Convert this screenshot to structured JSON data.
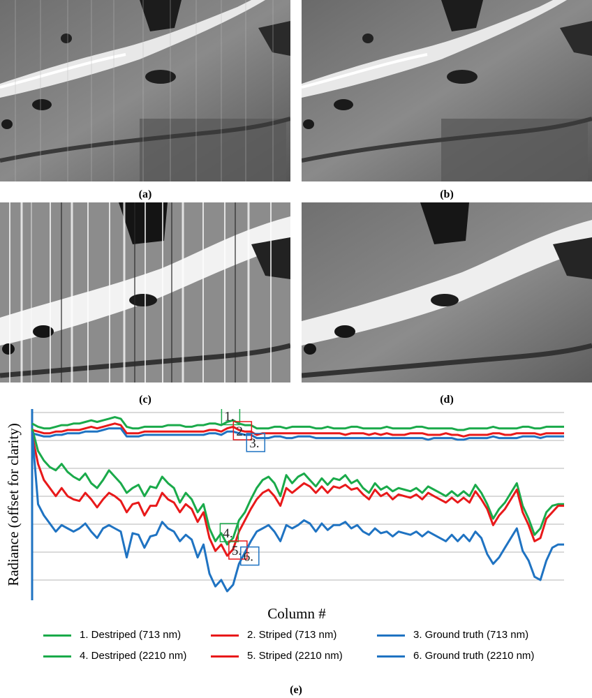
{
  "figure": {
    "captions": {
      "a": "(a)",
      "b": "(b)",
      "c": "(c)",
      "d": "(d)",
      "e": "(e)"
    }
  },
  "chart_data": {
    "type": "line",
    "title": "",
    "xlabel": "Column #",
    "ylabel": "Radiance (offset for clarity)",
    "x_ticks_shown": false,
    "y_ticks_shown": false,
    "grid": true,
    "legend_position": "bottom",
    "markers": [
      {
        "label": "1.",
        "color": "#1aaa4a"
      },
      {
        "label": "2.",
        "color": "#e8191a"
      },
      {
        "label": "3.",
        "color": "#1f73c2"
      },
      {
        "label": "4.",
        "color": "#1aaa4a"
      },
      {
        "label": "5.",
        "color": "#e8191a"
      },
      {
        "label": "6.",
        "color": "#1f73c2"
      }
    ],
    "series": [
      {
        "name": "1. Destriped (713 nm)",
        "color": "#1aaa4a",
        "values": [
          95,
          93,
          92,
          92,
          93,
          94,
          94,
          95,
          95,
          96,
          97,
          96,
          97,
          98,
          99,
          98,
          93,
          92,
          92,
          93,
          93,
          93,
          93,
          94,
          94,
          94,
          93,
          93,
          94,
          94,
          95,
          95,
          94,
          96,
          97,
          95,
          94,
          94,
          92,
          92,
          92,
          93,
          93,
          92,
          93,
          93,
          93,
          93,
          92,
          92,
          93,
          92,
          92,
          92,
          93,
          93,
          92,
          92,
          92,
          92,
          93,
          92,
          92,
          92,
          92,
          93,
          93,
          92,
          92,
          92,
          92,
          92,
          91,
          91,
          92,
          92,
          92,
          92,
          93,
          92,
          92,
          92,
          92,
          93,
          93,
          92,
          92,
          93,
          93,
          93,
          93
        ]
      },
      {
        "name": "2. Striped (713 nm)",
        "color": "#e8191a",
        "values": [
          91,
          90,
          89,
          89,
          90,
          90,
          91,
          91,
          91,
          92,
          93,
          92,
          93,
          94,
          95,
          94,
          89,
          89,
          89,
          90,
          90,
          90,
          90,
          90,
          90,
          90,
          90,
          90,
          90,
          90,
          91,
          91,
          90,
          92,
          93,
          91,
          90,
          90,
          88,
          89,
          89,
          89,
          89,
          89,
          89,
          89,
          89,
          89,
          89,
          89,
          89,
          89,
          89,
          88,
          89,
          89,
          89,
          88,
          89,
          88,
          89,
          88,
          88,
          88,
          89,
          89,
          89,
          88,
          88,
          88,
          89,
          88,
          88,
          87,
          88,
          88,
          88,
          88,
          89,
          89,
          88,
          88,
          89,
          89,
          89,
          89,
          88,
          89,
          89,
          89,
          89
        ]
      },
      {
        "name": "3. Ground truth (713 nm)",
        "color": "#1f73c2",
        "values": [
          89,
          88,
          87,
          87,
          88,
          88,
          89,
          89,
          89,
          90,
          90,
          90,
          91,
          92,
          92,
          92,
          87,
          87,
          87,
          88,
          88,
          88,
          88,
          88,
          88,
          88,
          88,
          88,
          88,
          88,
          89,
          89,
          88,
          90,
          90,
          89,
          88,
          88,
          86,
          86,
          86,
          87,
          87,
          86,
          86,
          87,
          87,
          87,
          86,
          86,
          86,
          86,
          86,
          86,
          86,
          86,
          86,
          86,
          86,
          86,
          86,
          86,
          86,
          86,
          86,
          86,
          86,
          85,
          86,
          86,
          86,
          86,
          85,
          85,
          86,
          86,
          86,
          86,
          87,
          86,
          86,
          86,
          86,
          87,
          87,
          87,
          86,
          87,
          87,
          87,
          87
        ]
      },
      {
        "name": "4. Destriped (2210 nm)",
        "color": "#1aaa4a",
        "values": [
          92,
          78,
          72,
          68,
          66,
          70,
          65,
          62,
          60,
          64,
          58,
          55,
          60,
          66,
          62,
          58,
          52,
          55,
          57,
          50,
          56,
          55,
          62,
          58,
          55,
          46,
          52,
          48,
          40,
          45,
          30,
          22,
          27,
          20,
          24,
          35,
          40,
          48,
          55,
          60,
          62,
          58,
          50,
          63,
          58,
          62,
          64,
          60,
          56,
          61,
          57,
          61,
          60,
          63,
          58,
          60,
          55,
          52,
          58,
          54,
          56,
          53,
          55,
          54,
          53,
          55,
          52,
          56,
          54,
          52,
          50,
          53,
          50,
          53,
          50,
          57,
          52,
          45,
          36,
          42,
          46,
          52,
          58,
          44,
          36,
          26,
          30,
          40,
          44,
          45,
          45
        ]
      },
      {
        "name": "5. Striped (2210 nm)",
        "color": "#e8191a",
        "values": [
          88,
          70,
          60,
          55,
          50,
          55,
          50,
          48,
          47,
          52,
          48,
          43,
          48,
          52,
          50,
          47,
          40,
          45,
          46,
          38,
          44,
          44,
          52,
          48,
          46,
          40,
          45,
          42,
          34,
          40,
          24,
          16,
          20,
          13,
          17,
          28,
          35,
          42,
          48,
          52,
          54,
          50,
          44,
          55,
          52,
          55,
          58,
          56,
          52,
          56,
          52,
          56,
          55,
          57,
          54,
          55,
          51,
          48,
          54,
          50,
          52,
          48,
          51,
          50,
          49,
          51,
          48,
          52,
          50,
          48,
          46,
          49,
          46,
          49,
          46,
          53,
          48,
          42,
          32,
          38,
          42,
          48,
          54,
          40,
          32,
          22,
          24,
          36,
          40,
          44,
          44
        ]
      },
      {
        "name": "6. Ground truth (2210 nm)",
        "color": "#1f73c2",
        "values": [
          90,
          45,
          38,
          33,
          28,
          32,
          30,
          28,
          30,
          33,
          28,
          24,
          30,
          32,
          30,
          28,
          12,
          27,
          26,
          18,
          25,
          26,
          34,
          30,
          28,
          22,
          26,
          23,
          12,
          20,
          2,
          -6,
          -2,
          -9,
          -5,
          8,
          15,
          22,
          28,
          30,
          32,
          28,
          22,
          32,
          30,
          32,
          35,
          33,
          28,
          33,
          29,
          32,
          32,
          34,
          30,
          32,
          28,
          26,
          30,
          27,
          28,
          25,
          28,
          27,
          26,
          28,
          25,
          28,
          26,
          24,
          22,
          26,
          22,
          26,
          22,
          28,
          24,
          14,
          8,
          12,
          18,
          24,
          30,
          16,
          10,
          0,
          -2,
          10,
          18,
          20,
          20
        ]
      }
    ]
  }
}
